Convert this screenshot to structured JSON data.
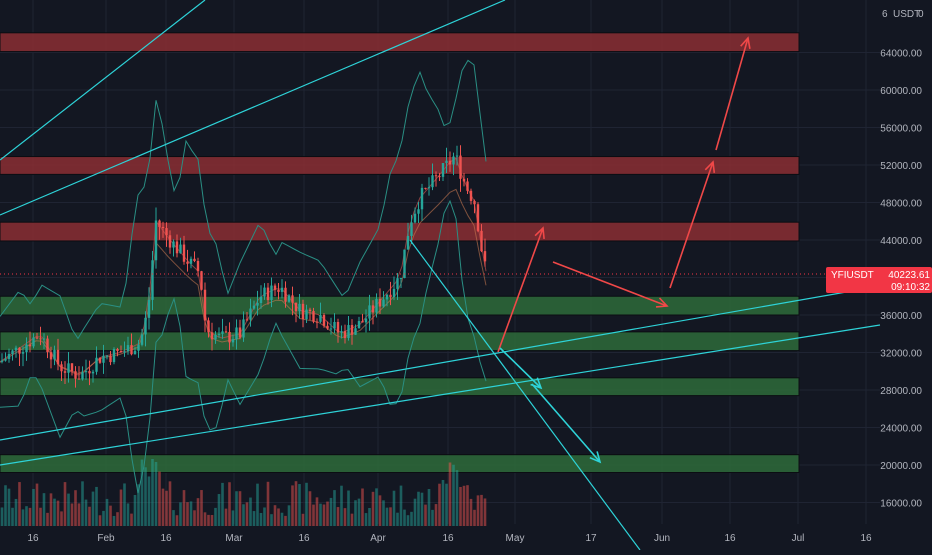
{
  "chart_data": {
    "type": "candlestick",
    "symbol": "YFIUSDT",
    "currency": "USDT",
    "last_price": "40223.61",
    "countdown": "09:10:32",
    "x_ticks": [
      "16",
      "Feb",
      "16",
      "Mar",
      "16",
      "Apr",
      "16",
      "May",
      "17",
      "Jun",
      "16",
      "Jul",
      "16"
    ],
    "y_ticks": [
      16000,
      20000,
      24000,
      28000,
      32000,
      36000,
      40000,
      44000,
      48000,
      52000,
      56000,
      60000,
      64000
    ],
    "y_tick_labels": [
      "16000.00",
      "20000.00",
      "24000.00",
      "28000.00",
      "32000.00",
      "36000.00",
      "40000.00",
      "44000.00",
      "48000.00",
      "52000.00",
      "56000.00",
      "60000.00",
      "64000.00"
    ],
    "ylim": [
      12500,
      69000
    ],
    "zones": [
      {
        "type": "resistance",
        "from": 64100,
        "to": 66100
      },
      {
        "type": "resistance",
        "from": 51000,
        "to": 52900
      },
      {
        "type": "resistance",
        "from": 43900,
        "to": 45900
      },
      {
        "type": "support",
        "from": 36000,
        "to": 38000
      },
      {
        "type": "support",
        "from": 32200,
        "to": 34200
      },
      {
        "type": "support",
        "from": 27400,
        "to": 29300
      },
      {
        "type": "support",
        "from": 19200,
        "to": 21100
      }
    ],
    "colors": {
      "background": "#131722",
      "up_candle": "#26a69a",
      "down_candle": "#ef5350",
      "resistance_zone": "#8b2e32",
      "support_zone": "#2e6b3a",
      "trendline": "#2ed3d8",
      "projection_up": "#f04848",
      "projection_down": "#2ed3d8",
      "price_label": "#f23645"
    }
  },
  "axis": {
    "unit_label": "USDT",
    "top_tick_partial": "6",
    "top_right_value": "0"
  }
}
